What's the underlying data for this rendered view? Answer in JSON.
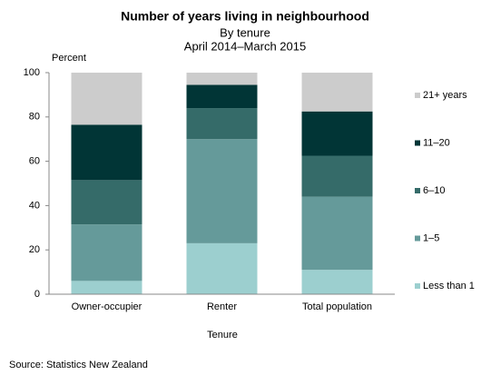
{
  "chart_data": {
    "type": "stacked_bar",
    "title": "Number of years living in neighbourhood",
    "subtitle": "By tenure",
    "period": "April 2014–March  2015",
    "y_label": "Percent",
    "x_label": "Tenure",
    "source": "Source: Statistics New Zealand",
    "categories": [
      "Owner-occupier",
      "Renter",
      "Total population"
    ],
    "series": [
      {
        "name": "Less than 1",
        "color": "#9ccfcf",
        "values": [
          6,
          23,
          11
        ]
      },
      {
        "name": "1–5",
        "color": "#659a9a",
        "values": [
          25.5,
          47,
          33
        ]
      },
      {
        "name": "6–10",
        "color": "#356b69",
        "values": [
          20,
          14,
          18.5
        ]
      },
      {
        "name": "11–20",
        "color": "#013536",
        "values": [
          25,
          10.5,
          20
        ]
      },
      {
        "name": "21+ years",
        "color": "#cccccc",
        "values": [
          23.5,
          5.5,
          17.5
        ]
      }
    ],
    "ylim": [
      0,
      100
    ],
    "yticks": [
      0,
      20,
      40,
      60,
      80,
      100
    ],
    "grid": false
  }
}
